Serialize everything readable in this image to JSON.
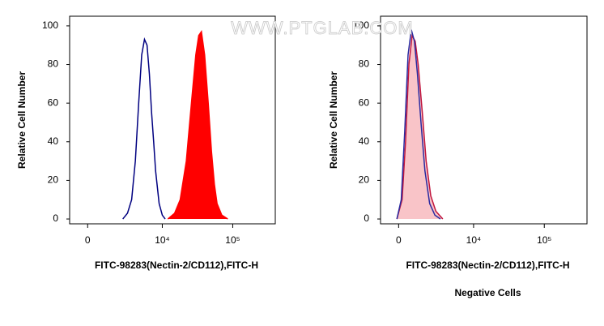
{
  "watermark": "WWW.PTGLAB.COM",
  "chart_data": [
    {
      "type": "area",
      "xscale": "biexponential",
      "x_label": "FITC-98283(Nectin-2/CD112),FITC-H",
      "y_label": "Relative Cell Number",
      "xlim": [
        -1100,
        400000
      ],
      "ylim": [
        -2.5,
        105
      ],
      "xticks": [
        {
          "value": 0,
          "label": "0"
        },
        {
          "value": 10000,
          "label": "10⁴"
        },
        {
          "value": 100000,
          "label": "10⁵"
        }
      ],
      "yticks": [
        0,
        20,
        40,
        60,
        80,
        100
      ],
      "series": [
        {
          "color": "#000080",
          "fill": "none",
          "x": [
            2500,
            3000,
            3500,
            4000,
            4500,
            5000,
            5500,
            6000,
            6500,
            7000,
            7500,
            8000,
            9000,
            10000,
            11000
          ],
          "values": [
            0,
            3,
            10,
            30,
            60,
            85,
            93,
            90,
            75,
            55,
            40,
            25,
            8,
            2,
            0
          ]
        },
        {
          "color": "#ff0000",
          "fill": "#ff0000",
          "x": [
            12000,
            15000,
            18000,
            22000,
            26000,
            30000,
            33000,
            36000,
            40000,
            45000,
            50000,
            55000,
            60000,
            70000,
            85000
          ],
          "values": [
            0,
            3,
            10,
            30,
            60,
            85,
            95,
            97,
            85,
            60,
            35,
            18,
            8,
            2,
            0
          ]
        }
      ]
    },
    {
      "type": "area",
      "xscale": "biexponential",
      "x_label": "FITC-98283(Nectin-2/CD112),FITC-H",
      "y_label": "Relative Cell Number",
      "subtitle": "Negative Cells",
      "xlim": [
        -1100,
        400000
      ],
      "ylim": [
        -2.5,
        105
      ],
      "xticks": [
        {
          "value": 0,
          "label": "0"
        },
        {
          "value": 10000,
          "label": "10⁴"
        },
        {
          "value": 100000,
          "label": "10⁵"
        }
      ],
      "yticks": [
        0,
        20,
        40,
        60,
        80,
        100
      ],
      "series": [
        {
          "color": "#c0143c",
          "fill": "#f9c4c8",
          "x": [
            -100,
            200,
            400,
            600,
            800,
            1000,
            1200,
            1500,
            1800,
            2200,
            2700,
            3500
          ],
          "values": [
            0,
            10,
            40,
            80,
            95,
            92,
            80,
            55,
            30,
            12,
            4,
            0
          ]
        },
        {
          "color": "#2a2aa0",
          "fill": "none",
          "x": [
            -100,
            150,
            350,
            550,
            750,
            950,
            1150,
            1400,
            1700,
            2100,
            2600,
            3200
          ],
          "values": [
            0,
            10,
            45,
            85,
            98,
            92,
            75,
            50,
            25,
            8,
            2,
            0
          ]
        }
      ]
    }
  ]
}
